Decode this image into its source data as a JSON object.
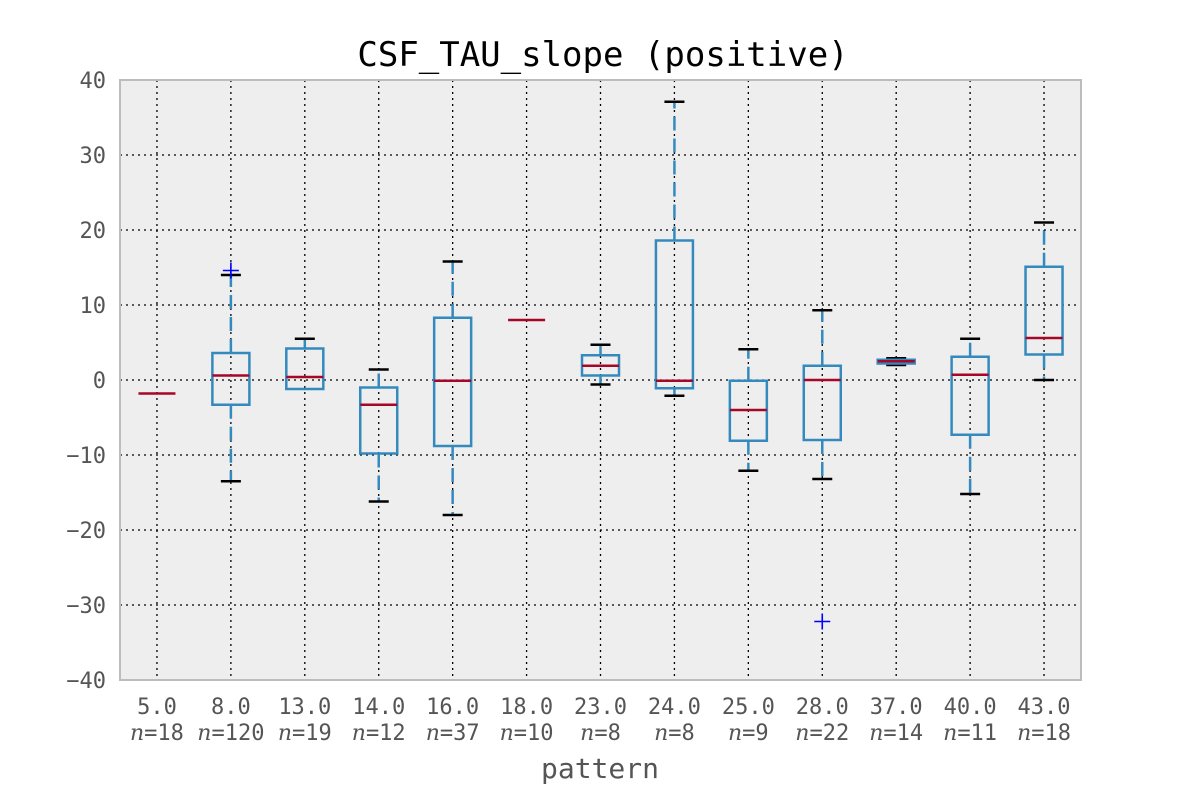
{
  "chart_data": {
    "type": "box",
    "title": "CSF_TAU_slope (positive)",
    "xlabel": "pattern",
    "ylabel": "",
    "ylim": [
      -40,
      40
    ],
    "yticks": [
      -40,
      -30,
      -20,
      -10,
      0,
      10,
      20,
      30,
      40
    ],
    "grid": true,
    "categories": [
      "5.0",
      "8.0",
      "13.0",
      "14.0",
      "16.0",
      "18.0",
      "23.0",
      "24.0",
      "25.0",
      "28.0",
      "37.0",
      "40.0",
      "43.0"
    ],
    "counts": [
      "n=18",
      "n=120",
      "n=19",
      "n=12",
      "n=37",
      "n=10",
      "n=8",
      "n=8",
      "n=9",
      "n=22",
      "n=14",
      "n=11",
      "n=18"
    ],
    "boxes": [
      {
        "whislo": -1.8,
        "q1": -1.8,
        "med": -1.8,
        "q3": -1.8,
        "whishi": -1.8,
        "fliers": []
      },
      {
        "whislo": -13.5,
        "q1": -3.3,
        "med": 0.6,
        "q3": 3.6,
        "whishi": 14.0,
        "fliers": [
          14.6
        ]
      },
      {
        "whislo": -1.2,
        "q1": -1.2,
        "med": 0.4,
        "q3": 4.2,
        "whishi": 5.5,
        "fliers": []
      },
      {
        "whislo": -16.2,
        "q1": -9.8,
        "med": -3.3,
        "q3": -1.0,
        "whishi": 1.4,
        "fliers": []
      },
      {
        "whislo": -18.0,
        "q1": -8.8,
        "med": -0.1,
        "q3": 8.3,
        "whishi": 15.8,
        "fliers": []
      },
      {
        "whislo": 8.0,
        "q1": 8.0,
        "med": 8.0,
        "q3": 8.0,
        "whishi": 8.0,
        "fliers": []
      },
      {
        "whislo": -0.6,
        "q1": 0.6,
        "med": 1.9,
        "q3": 3.3,
        "whishi": 4.7,
        "fliers": []
      },
      {
        "whislo": -2.1,
        "q1": -1.1,
        "med": -0.1,
        "q3": 18.6,
        "whishi": 37.1,
        "fliers": []
      },
      {
        "whislo": -12.1,
        "q1": -8.1,
        "med": -4.0,
        "q3": -0.1,
        "whishi": 4.1,
        "fliers": []
      },
      {
        "whislo": -13.2,
        "q1": -8.0,
        "med": 0.0,
        "q3": 1.9,
        "whishi": 9.3,
        "fliers": [
          -32.2
        ]
      },
      {
        "whislo": 2.0,
        "q1": 2.2,
        "med": 2.5,
        "q3": 2.7,
        "whishi": 2.9,
        "fliers": []
      },
      {
        "whislo": -15.2,
        "q1": -7.3,
        "med": 0.7,
        "q3": 3.1,
        "whishi": 5.5,
        "fliers": []
      },
      {
        "whislo": 0.0,
        "q1": 3.4,
        "med": 5.6,
        "q3": 15.1,
        "whishi": 21.0,
        "fliers": []
      }
    ],
    "colors": {
      "box": "#348ABD",
      "median": "#A60628",
      "whisker_cap": "#000000",
      "flier": "#0000FF",
      "plot_bg": "#EEEEEE",
      "frame": "#BCBCBC"
    }
  }
}
